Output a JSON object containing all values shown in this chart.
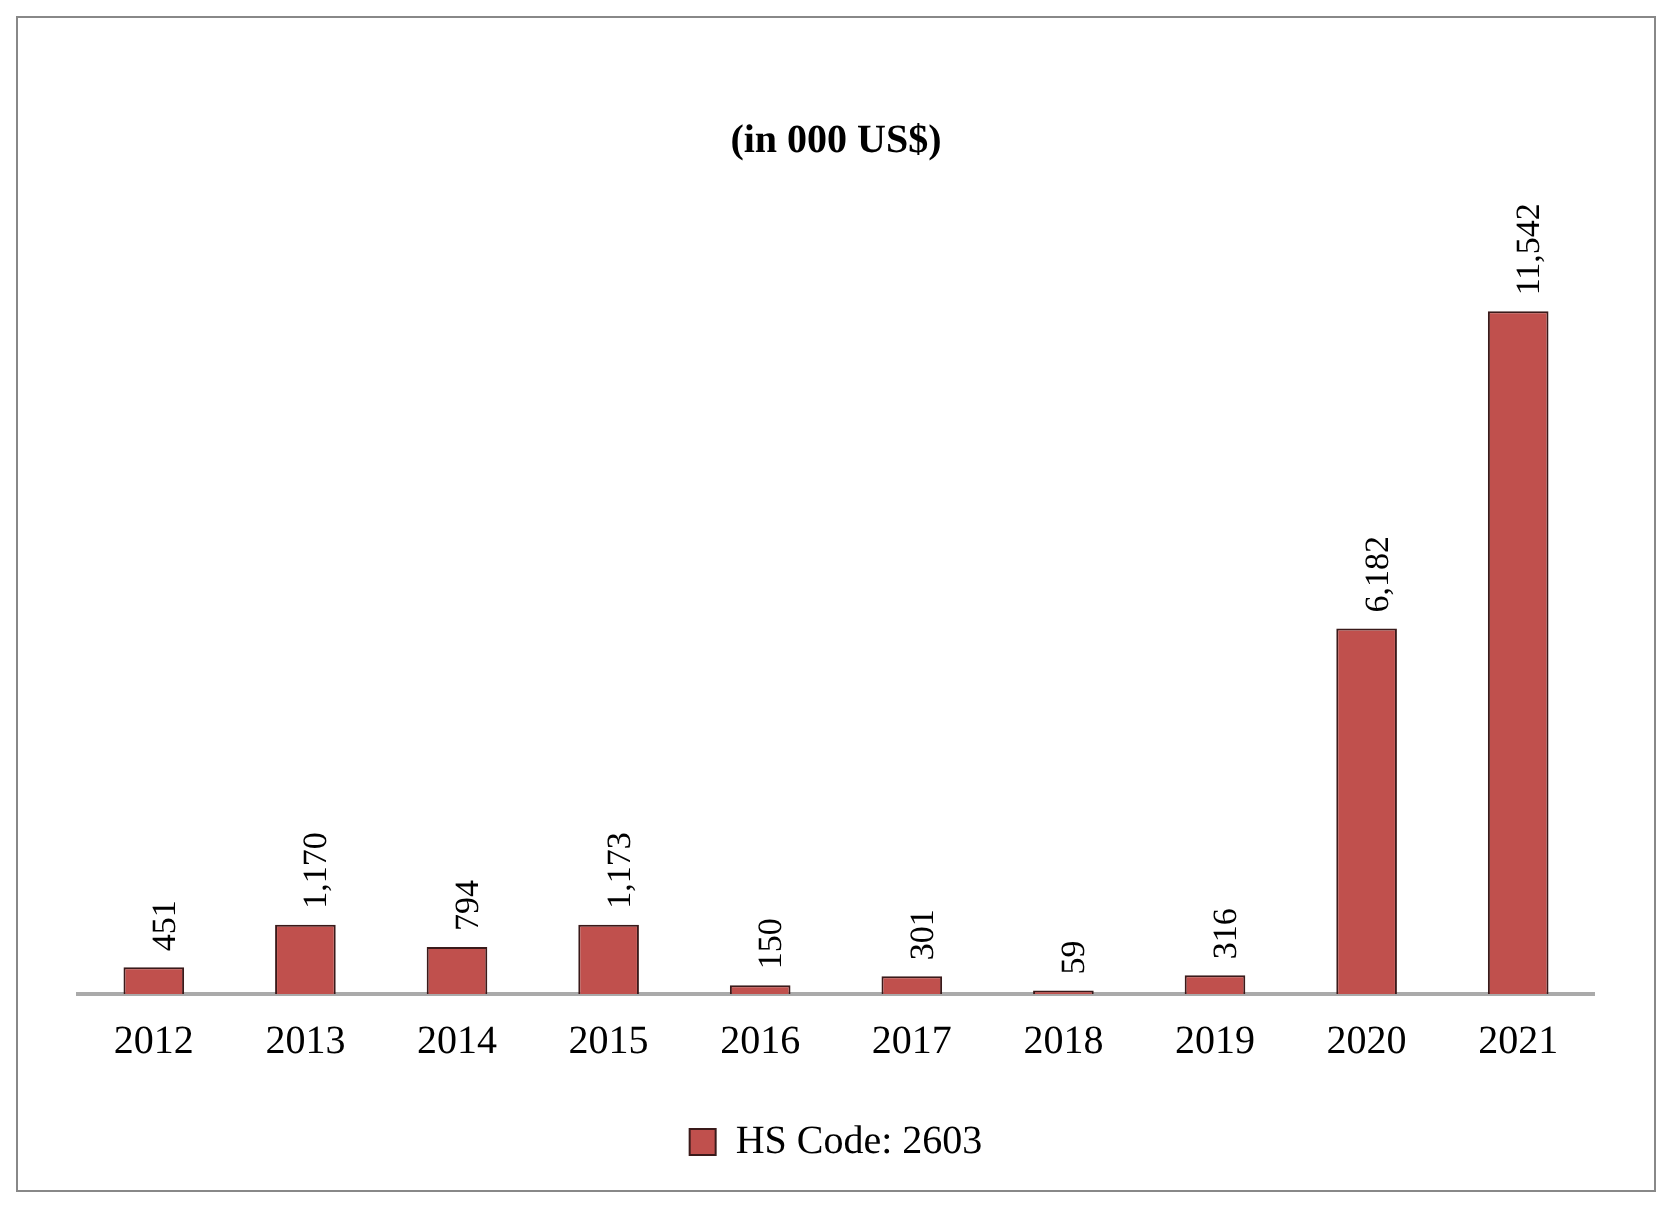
{
  "chart_data": {
    "type": "bar",
    "title": "(in 000 US$)",
    "categories": [
      "2012",
      "2013",
      "2014",
      "2015",
      "2016",
      "2017",
      "2018",
      "2019",
      "2020",
      "2021"
    ],
    "series": [
      {
        "name": "HS Code: 2603",
        "color": "#c0504d",
        "values": [
          451,
          1170,
          794,
          1173,
          150,
          301,
          59,
          316,
          6182,
          11542
        ],
        "value_labels": [
          "451",
          "1,170",
          "794",
          "1,173",
          "150",
          "301",
          "59",
          "316",
          "6,182",
          "11,542"
        ]
      }
    ],
    "legend": "bottom",
    "grid": false
  }
}
